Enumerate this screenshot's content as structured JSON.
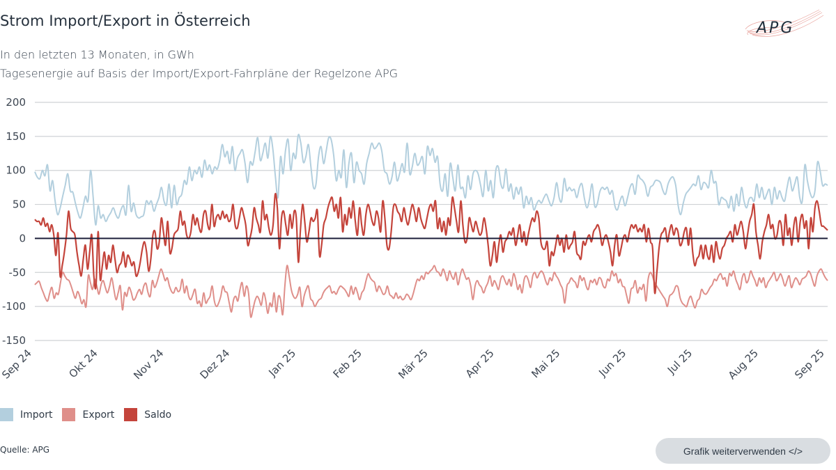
{
  "header": {
    "title": "Strom Import/Export in Österreich",
    "subtitle_line1": "In den letzten 13 Monaten, in GWh",
    "subtitle_line2": "Tagesenergie auf Basis der Import/Export-Fahrpläne der Regelzone APG",
    "logo_text": "APG"
  },
  "legend": [
    {
      "label": "Import",
      "color": "#b3cfde"
    },
    {
      "label": "Export",
      "color": "#df8f8a"
    },
    {
      "label": "Saldo",
      "color": "#c4443b"
    }
  ],
  "footer": {
    "source": "Quelle: APG",
    "reuse_button": "Grafik weiterverwenden </>"
  },
  "chart_data": {
    "type": "line",
    "title": "Strom Import/Export in Österreich",
    "xlabel": "",
    "ylabel": "GWh",
    "ylim": [
      -150,
      200
    ],
    "yticks": [
      200,
      150,
      100,
      50,
      0,
      -50,
      -100,
      -150
    ],
    "ytick_labels": [
      "200",
      "150",
      "100",
      "50",
      "0",
      "-50",
      "-100",
      "-150"
    ],
    "x_tick_labels": [
      "Sep 24",
      "Okt 24",
      "Nov 24",
      "Dez 24",
      "Jan 25",
      "Feb 25",
      "Mär 25",
      "Apr 25",
      "Mai 25",
      "Jun 25",
      "Jul 25",
      "Aug 25",
      "Sep 25"
    ],
    "x_range_months": [
      0,
      12
    ],
    "grid": true,
    "zero_line": true,
    "legend_position": "bottom-left",
    "series": [
      {
        "name": "Import",
        "color": "#b3cfde",
        "values": [
          98,
          90,
          88,
          100,
          92,
          108,
          70,
          85,
          55,
          35,
          45,
          62,
          78,
          95,
          70,
          68,
          52,
          38,
          30,
          45,
          62,
          55,
          100,
          62,
          20,
          48,
          30,
          35,
          25,
          32,
          38,
          45,
          35,
          30,
          42,
          48,
          35,
          78,
          40,
          52,
          35,
          30,
          32,
          35,
          55,
          50,
          55,
          40,
          50,
          60,
          75,
          55,
          50,
          80,
          45,
          78,
          50,
          60,
          65,
          85,
          80,
          105,
          85,
          100,
          95,
          105,
          90,
          115,
          100,
          108,
          95,
          105,
          102,
          115,
          138,
          120,
          128,
          110,
          135,
          100,
          118,
          125,
          130,
          110,
          82,
          112,
          108,
          128,
          148,
          115,
          125,
          140,
          118,
          150,
          130,
          90,
          60,
          120,
          95,
          130,
          145,
          100,
          125,
          118,
          152,
          140,
          112,
          120,
          138,
          105,
          75,
          80,
          120,
          135,
          110,
          128,
          148,
          145,
          122,
          85,
          100,
          90,
          130,
          75,
          110,
          125,
          82,
          112,
          100,
          95,
          80,
          110,
          125,
          140,
          132,
          135,
          140,
          128,
          100,
          95,
          80,
          90,
          112,
          85,
          95,
          110,
          98,
          140,
          95,
          105,
          125,
          108,
          112,
          120,
          95,
          135,
          122,
          132,
          112,
          120,
          80,
          70,
          95,
          62,
          110,
          90,
          70,
          108,
          75,
          75,
          60,
          92,
          72,
          95,
          100,
          95,
          78,
          62,
          100,
          70,
          85,
          60,
          100,
          105,
          80,
          75,
          102,
          70,
          80,
          58,
          75,
          65,
          75,
          45,
          62,
          50,
          60,
          42,
          50,
          56,
          52,
          60,
          65,
          55,
          48,
          60,
          82,
          60,
          55,
          88,
          70,
          75,
          70,
          72,
          60,
          75,
          80,
          58,
          45,
          58,
          80,
          48,
          50,
          68,
          75,
          72,
          75,
          65,
          70,
          48,
          42,
          55,
          62,
          48,
          60,
          75,
          80,
          65,
          92,
          88,
          85,
          78,
          62,
          75,
          78,
          85,
          85,
          82,
          70,
          65,
          80,
          88,
          90,
          78,
          48,
          35,
          52,
          65,
          70,
          75,
          80,
          78,
          92,
          72,
          82,
          80,
          75,
          100,
          82,
          82,
          50,
          60,
          58,
          55,
          45,
          62,
          40,
          65,
          48,
          75,
          55,
          45,
          58,
          60,
          55,
          80,
          60,
          75,
          58,
          65,
          72,
          50,
          75,
          58,
          70,
          60,
          55,
          75,
          90,
          70,
          80,
          90,
          60,
          55,
          108,
          85,
          68,
          60,
          70,
          112,
          100,
          78,
          80,
          78
        ]
      },
      {
        "name": "Export",
        "color": "#df8f8a",
        "values": [
          -68,
          -65,
          -63,
          -72,
          -80,
          -88,
          -92,
          -80,
          -72,
          -88,
          -80,
          -82,
          -65,
          -50,
          -55,
          -60,
          -62,
          -70,
          -80,
          -88,
          -78,
          -85,
          -96,
          -90,
          -100,
          -55,
          -65,
          -75,
          -60,
          -70,
          -82,
          -68,
          -62,
          -72,
          -80,
          -70,
          -58,
          -75,
          -90,
          -80,
          -70,
          -105,
          -80,
          -85,
          -72,
          -78,
          -90,
          -88,
          -80,
          -75,
          -82,
          -70,
          -66,
          -80,
          -85,
          -62,
          -72,
          -66,
          -55,
          -45,
          -52,
          -62,
          -58,
          -70,
          -78,
          -80,
          -72,
          -78,
          -75,
          -60,
          -80,
          -70,
          -85,
          -90,
          -82,
          -75,
          -95,
          -92,
          -100,
          -80,
          -95,
          -90,
          -85,
          -70,
          -92,
          -100,
          -95,
          -85,
          -70,
          -78,
          -80,
          -95,
          -108,
          -90,
          -85,
          -92,
          -75,
          -65,
          -85,
          -70,
          -80,
          -115,
          -105,
          -92,
          -85,
          -90,
          -98,
          -80,
          -90,
          -110,
          -95,
          -100,
          -80,
          -108,
          -85,
          -90,
          -112,
          -70,
          -40,
          -55,
          -75,
          -85,
          -88,
          -82,
          -72,
          -100,
          -85,
          -75,
          -70,
          -88,
          -92,
          -100,
          -95,
          -90,
          -88,
          -80,
          -75,
          -72,
          -70,
          -80,
          -78,
          -82,
          -75,
          -70,
          -72,
          -75,
          -80,
          -85,
          -70,
          -82,
          -72,
          -80,
          -90,
          -80,
          -75,
          -62,
          -52,
          -58,
          -62,
          -65,
          -78,
          -70,
          -75,
          -82,
          -80,
          -70,
          -82,
          -85,
          -88,
          -80,
          -88,
          -85,
          -90,
          -88,
          -82,
          -85,
          -90,
          -82,
          -70,
          -60,
          -62,
          -55,
          -60,
          -50,
          -52,
          -48,
          -45,
          -40,
          -48,
          -50,
          -55,
          -45,
          -52,
          -62,
          -48,
          -55,
          -60,
          -50,
          -68,
          -55,
          -45,
          -52,
          -60,
          -58,
          -70,
          -90,
          -70,
          -62,
          -68,
          -72,
          -80,
          -72,
          -65,
          -55,
          -70,
          -62,
          -68,
          -75,
          -60,
          -55,
          -62,
          -68,
          -60,
          -70,
          -52,
          -60,
          -75,
          -68,
          -80,
          -60,
          -55,
          -62,
          -72,
          -55,
          -50,
          -58,
          -52,
          -48,
          -52,
          -62,
          -68,
          -58,
          -62,
          -50,
          -55,
          -60,
          -68,
          -75,
          -95,
          -70,
          -65,
          -58,
          -62,
          -65,
          -72,
          -55,
          -62,
          -58,
          -70,
          -75,
          -62,
          -65,
          -60,
          -68,
          -58,
          -60,
          -70,
          -72,
          -60,
          -62,
          -48,
          -55,
          -52,
          -65,
          -60,
          -70,
          -72,
          -85,
          -95,
          -75,
          -72,
          -62,
          -80,
          -72,
          -75,
          -68,
          -92,
          -60,
          -50,
          -55,
          -65,
          -70,
          -75,
          -80,
          -85,
          -90,
          -100,
          -85,
          -82,
          -78,
          -70,
          -72,
          -88,
          -95,
          -98,
          -100,
          -90,
          -85,
          -95,
          -102,
          -92,
          -88,
          -75,
          -80,
          -82,
          -78,
          -72,
          -68,
          -60,
          -62,
          -55,
          -52,
          -60,
          -58,
          -70,
          -52,
          -55,
          -48,
          -60,
          -68,
          -75,
          -58,
          -52,
          -65,
          -60,
          -48,
          -55,
          -62,
          -70,
          -58,
          -65,
          -58,
          -72,
          -65,
          -60,
          -55,
          -50,
          -62,
          -58,
          -52,
          -60,
          -70,
          -62,
          -55,
          -72,
          -65,
          -58,
          -62,
          -68,
          -60,
          -58,
          -55,
          -48,
          -52,
          -62,
          -70,
          -55,
          -48,
          -45,
          -52,
          -58,
          -62
        ]
      },
      {
        "name": "Saldo",
        "color": "#c4443b",
        "values": [
          28,
          25,
          25,
          20,
          30,
          18,
          22,
          10,
          20,
          5,
          -25,
          8,
          -55,
          -40,
          -20,
          5,
          40,
          15,
          10,
          5,
          -20,
          -40,
          -55,
          -30,
          -10,
          -45,
          -20,
          5,
          -55,
          -70,
          10,
          -60,
          -40,
          -20,
          -45,
          -25,
          -35,
          -10,
          -30,
          -50,
          -40,
          -35,
          -20,
          -42,
          -25,
          -30,
          -40,
          -35,
          -55,
          -50,
          -35,
          -15,
          -5,
          -20,
          -48,
          -30,
          5,
          10,
          -15,
          -5,
          30,
          10,
          -10,
          25,
          -20,
          -15,
          5,
          10,
          15,
          40,
          20,
          25,
          5,
          0,
          10,
          35,
          20,
          30,
          15,
          10,
          35,
          40,
          20,
          15,
          50,
          18,
          30,
          35,
          28,
          40,
          30,
          35,
          25,
          30,
          50,
          20,
          15,
          30,
          45,
          35,
          20,
          -10,
          0,
          15,
          45,
          30,
          20,
          10,
          55,
          28,
          35,
          15,
          5,
          20,
          65,
          45,
          -15,
          30,
          40,
          20,
          5,
          35,
          15,
          40,
          30,
          -35,
          15,
          50,
          25,
          -5,
          10,
          30,
          25,
          30,
          40,
          -25,
          -10,
          20,
          30,
          45,
          55,
          60,
          40,
          50,
          30,
          60,
          10,
          35,
          20,
          45,
          30,
          55,
          25,
          5,
          45,
          20,
          5,
          35,
          50,
          40,
          25,
          20,
          40,
          30,
          10,
          55,
          30,
          -10,
          -15,
          10,
          45,
          50,
          40,
          35,
          25,
          45,
          30,
          20,
          35,
          50,
          40,
          25,
          45,
          30,
          20,
          15,
          30,
          45,
          50,
          40,
          55,
          15,
          30,
          10,
          25,
          5,
          30,
          20,
          60,
          45,
          25,
          10,
          55,
          20,
          -5,
          0,
          30,
          20,
          10,
          25,
          15,
          5,
          10,
          30,
          15,
          -10,
          -40,
          -25,
          -5,
          -35,
          -10,
          5,
          -20,
          -5,
          0,
          10,
          5,
          15,
          -10,
          5,
          20,
          -5,
          10,
          -10,
          5,
          20,
          30,
          25,
          40,
          30,
          -5,
          -15,
          -15,
          -5,
          -40,
          -20,
          -25,
          -10,
          5,
          -10,
          0,
          -20,
          5,
          -15,
          -10,
          -5,
          10,
          -20,
          -25,
          -30,
          -5,
          -10,
          0,
          5,
          -5,
          10,
          15,
          20,
          10,
          -10,
          0,
          5,
          -5,
          -20,
          -40,
          -10,
          5,
          -25,
          -15,
          0,
          5,
          -5,
          10,
          20,
          15,
          20,
          10,
          15,
          10,
          20,
          -5,
          15,
          -5,
          -15,
          -80,
          -50,
          -15,
          5,
          10,
          15,
          -5,
          10,
          20,
          5,
          15,
          10,
          -10,
          -5,
          10,
          15,
          -10,
          15,
          -20,
          -40,
          -30,
          -25,
          -10,
          -30,
          -10,
          -25,
          -30,
          -10,
          -35,
          -5,
          -20,
          -30,
          -15,
          -10,
          0,
          5,
          10,
          -5,
          20,
          5,
          15,
          25,
          10,
          -15,
          5,
          25,
          35,
          50,
          10,
          -10,
          -30,
          -5,
          10,
          20,
          35,
          15,
          20,
          0,
          5,
          25,
          20,
          -10,
          35,
          5,
          15,
          -10,
          20,
          30,
          -5,
          25,
          35,
          15,
          25,
          -15,
          30,
          10,
          45,
          55,
          40,
          20,
          18,
          15,
          12
        ]
      }
    ]
  }
}
